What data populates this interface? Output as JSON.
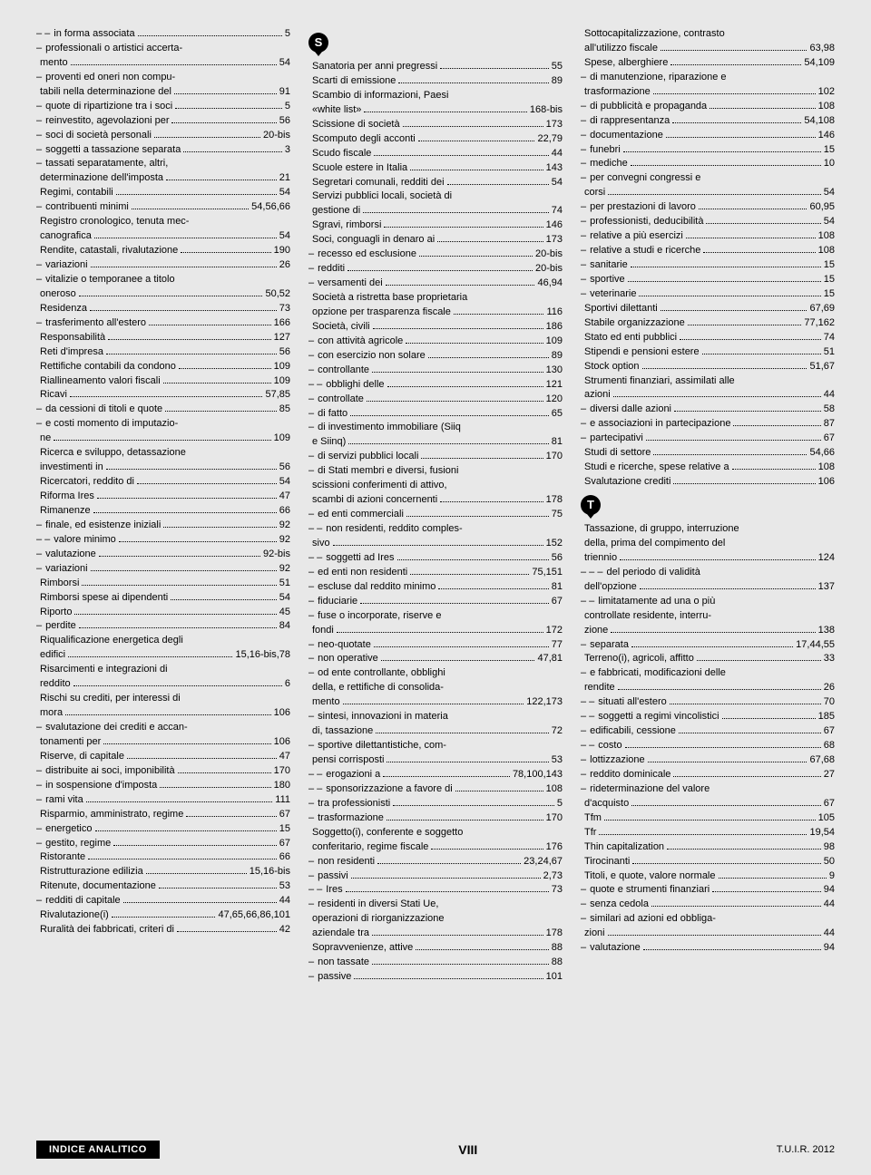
{
  "footer": {
    "left": "INDICE ANALITICO",
    "center": "VIII",
    "right": "T.U.I.R. 2012"
  },
  "sections": {
    "S": "S",
    "T": "T"
  },
  "col1": [
    {
      "d": "– – ",
      "t": "in forma associata",
      "p": "5"
    },
    {
      "d": "– ",
      "t": "professionali o artistici accerta-",
      "p": ""
    },
    {
      "d": "",
      "t": "mento",
      "p": "54"
    },
    {
      "d": "– ",
      "t": "proventi ed oneri non compu-",
      "p": ""
    },
    {
      "d": "",
      "t": "tabili nella determinazione del",
      "p": "91"
    },
    {
      "d": "– ",
      "t": "quote di ripartizione tra i soci",
      "p": "5"
    },
    {
      "d": "– ",
      "t": "reinvestito, agevolazioni per",
      "p": "56"
    },
    {
      "d": "– ",
      "t": "soci di società personali",
      "p": "20-bis"
    },
    {
      "d": "– ",
      "t": "soggetti a tassazione separata",
      "p": "3"
    },
    {
      "d": "– ",
      "t": "tassati separatamente, altri,",
      "p": ""
    },
    {
      "d": "",
      "t": "determinazione dell'imposta",
      "p": "21"
    },
    {
      "d": "",
      "t": "Regimi, contabili",
      "p": "54"
    },
    {
      "d": "– ",
      "t": "contribuenti minimi",
      "p": "54,56,66"
    },
    {
      "d": "",
      "t": "Registro cronologico, tenuta mec-",
      "p": ""
    },
    {
      "d": "",
      "t": "canografica",
      "p": "54"
    },
    {
      "d": "",
      "t": "Rendite, catastali, rivalutazione",
      "p": "190"
    },
    {
      "d": "– ",
      "t": "variazioni",
      "p": "26"
    },
    {
      "d": "– ",
      "t": "vitalizie o temporanee a titolo",
      "p": ""
    },
    {
      "d": "",
      "t": "oneroso",
      "p": "50,52"
    },
    {
      "d": "",
      "t": "Residenza",
      "p": "73"
    },
    {
      "d": "– ",
      "t": "trasferimento all'estero",
      "p": "166"
    },
    {
      "d": "",
      "t": "Responsabilità",
      "p": "127"
    },
    {
      "d": "",
      "t": "Reti d'impresa",
      "p": "56"
    },
    {
      "d": "",
      "t": "Rettifiche contabili da condono",
      "p": "109"
    },
    {
      "d": "",
      "t": "Riallineamento valori fiscali",
      "p": "109"
    },
    {
      "d": "",
      "t": "Ricavi",
      "p": "57,85"
    },
    {
      "d": "– ",
      "t": "da cessioni di titoli e quote",
      "p": "85"
    },
    {
      "d": "– ",
      "t": "e costi momento di imputazio-",
      "p": ""
    },
    {
      "d": "",
      "t": "ne",
      "p": "109"
    },
    {
      "d": "",
      "t": "Ricerca e sviluppo, detassazione",
      "p": ""
    },
    {
      "d": "",
      "t": "investimenti in",
      "p": "56"
    },
    {
      "d": "",
      "t": "Ricercatori, reddito di",
      "p": "54"
    },
    {
      "d": "",
      "t": "Riforma Ires",
      "p": "47"
    },
    {
      "d": "",
      "t": "Rimanenze",
      "p": "66"
    },
    {
      "d": "– ",
      "t": "finale, ed esistenze iniziali",
      "p": "92"
    },
    {
      "d": "– – ",
      "t": "valore minimo",
      "p": "92"
    },
    {
      "d": "– ",
      "t": "valutazione",
      "p": "92-bis"
    },
    {
      "d": "– ",
      "t": "variazioni",
      "p": "92"
    },
    {
      "d": "",
      "t": "Rimborsi",
      "p": "51"
    },
    {
      "d": "",
      "t": "Rimborsi spese ai dipendenti",
      "p": "54"
    },
    {
      "d": "",
      "t": "Riporto",
      "p": "45"
    },
    {
      "d": "– ",
      "t": "perdite",
      "p": "84"
    },
    {
      "d": "",
      "t": "Riqualificazione energetica degli",
      "p": ""
    },
    {
      "d": "",
      "t": "edifici",
      "p": "15,16-bis,78"
    },
    {
      "d": "",
      "t": "Risarcimenti e integrazioni di",
      "p": ""
    },
    {
      "d": "",
      "t": "reddito",
      "p": "6"
    },
    {
      "d": "",
      "t": "Rischi su crediti, per interessi di",
      "p": ""
    },
    {
      "d": "",
      "t": "mora",
      "p": "106"
    },
    {
      "d": "– ",
      "t": "svalutazione dei crediti e accan-",
      "p": ""
    },
    {
      "d": "",
      "t": "tonamenti per",
      "p": "106"
    },
    {
      "d": "",
      "t": "Riserve, di capitale",
      "p": "47"
    },
    {
      "d": "– ",
      "t": "distribuite ai soci, imponibilità",
      "p": "170"
    },
    {
      "d": "– ",
      "t": "in sospensione d'imposta",
      "p": "180"
    },
    {
      "d": "– ",
      "t": "rami vita",
      "p": "111"
    },
    {
      "d": "",
      "t": "Risparmio, amministrato, regime",
      "p": "67"
    },
    {
      "d": "– ",
      "t": "energetico",
      "p": "15"
    },
    {
      "d": "– ",
      "t": "gestito, regime",
      "p": "67"
    },
    {
      "d": "",
      "t": "Ristorante",
      "p": "66"
    },
    {
      "d": "",
      "t": "Ristrutturazione edilizia",
      "p": "15,16-bis"
    },
    {
      "d": "",
      "t": "Ritenute, documentazione",
      "p": "53"
    },
    {
      "d": "– ",
      "t": "redditi di capitale",
      "p": "44"
    },
    {
      "d": "",
      "t": "Rivalutazione(i)",
      "p": "47,65,66,86,101"
    },
    {
      "d": "",
      "t": "Ruralità dei fabbricati, criteri di",
      "p": "42"
    }
  ],
  "col2": [
    {
      "d": "",
      "t": "Sanatoria per anni pregressi",
      "p": "55"
    },
    {
      "d": "",
      "t": "Scarti di emissione",
      "p": "89"
    },
    {
      "d": "",
      "t": "Scambio di informazioni, Paesi",
      "p": ""
    },
    {
      "d": "",
      "t": "«white list»",
      "p": "168-bis"
    },
    {
      "d": "",
      "t": "Scissione di società",
      "p": "173"
    },
    {
      "d": "",
      "t": "Scomputo degli acconti",
      "p": "22,79"
    },
    {
      "d": "",
      "t": "Scudo fiscale",
      "p": "44"
    },
    {
      "d": "",
      "t": "Scuole estere in Italia",
      "p": "143"
    },
    {
      "d": "",
      "t": "Segretari comunali, redditi dei",
      "p": "54"
    },
    {
      "d": "",
      "t": "Servizi pubblici locali, società di",
      "p": ""
    },
    {
      "d": "",
      "t": "gestione di",
      "p": "74"
    },
    {
      "d": "",
      "t": "Sgravi, rimborsi",
      "p": "146"
    },
    {
      "d": "",
      "t": "Soci, conguagli in denaro ai",
      "p": "173"
    },
    {
      "d": "– ",
      "t": "recesso ed esclusione",
      "p": "20-bis"
    },
    {
      "d": "– ",
      "t": "redditi",
      "p": "20-bis"
    },
    {
      "d": "– ",
      "t": "versamenti dei",
      "p": "46,94"
    },
    {
      "d": "",
      "t": "Società a ristretta base proprietaria",
      "p": ""
    },
    {
      "d": "",
      "t": "opzione per trasparenza fiscale",
      "p": "116"
    },
    {
      "d": "",
      "t": "Società, civili",
      "p": "186"
    },
    {
      "d": "– ",
      "t": "con attività agricole",
      "p": "109"
    },
    {
      "d": "– ",
      "t": "con esercizio non solare",
      "p": "89"
    },
    {
      "d": "– ",
      "t": "controllante",
      "p": "130"
    },
    {
      "d": "– – ",
      "t": "obblighi delle",
      "p": "121"
    },
    {
      "d": "– ",
      "t": "controllate",
      "p": "120"
    },
    {
      "d": "– ",
      "t": "di fatto",
      "p": "65"
    },
    {
      "d": "– ",
      "t": "di investimento immobiliare (Siiq",
      "p": ""
    },
    {
      "d": "",
      "t": "e Siinq)",
      "p": "81"
    },
    {
      "d": "– ",
      "t": "di servizi pubblici locali",
      "p": "170"
    },
    {
      "d": "– ",
      "t": "di Stati membri e diversi, fusioni",
      "p": ""
    },
    {
      "d": "",
      "t": "scissioni conferimenti di attivo,",
      "p": ""
    },
    {
      "d": "",
      "t": "scambi di azioni concernenti",
      "p": "178"
    },
    {
      "d": "– ",
      "t": "ed enti commerciali",
      "p": "75"
    },
    {
      "d": "– – ",
      "t": "non residenti, reddito comples-",
      "p": ""
    },
    {
      "d": "",
      "t": "sivo",
      "p": "152"
    },
    {
      "d": "– – ",
      "t": "soggetti ad Ires",
      "p": "56"
    },
    {
      "d": "– ",
      "t": "ed enti non residenti",
      "p": "75,151"
    },
    {
      "d": "– ",
      "t": "escluse dal reddito minimo",
      "p": "81"
    },
    {
      "d": "– ",
      "t": "fiduciarie",
      "p": "67"
    },
    {
      "d": "– ",
      "t": "fuse o incorporate, riserve e",
      "p": ""
    },
    {
      "d": "",
      "t": "fondi",
      "p": "172"
    },
    {
      "d": "– ",
      "t": "neo-quotate",
      "p": "77"
    },
    {
      "d": "– ",
      "t": "non operative",
      "p": "47,81"
    },
    {
      "d": "– ",
      "t": "od ente controllante, obblighi",
      "p": ""
    },
    {
      "d": "",
      "t": "della, e rettifiche di consolida-",
      "p": ""
    },
    {
      "d": "",
      "t": "mento",
      "p": "122,173"
    },
    {
      "d": "– ",
      "t": "sintesi, innovazioni in materia",
      "p": ""
    },
    {
      "d": "",
      "t": "di, tassazione",
      "p": "72"
    },
    {
      "d": "– ",
      "t": "sportive dilettantistiche, com-",
      "p": ""
    },
    {
      "d": "",
      "t": "pensi corrisposti",
      "p": "53"
    },
    {
      "d": "– – ",
      "t": "erogazioni a",
      "p": "78,100,143"
    },
    {
      "d": "– – ",
      "t": "sponsorizzazione a favore di",
      "p": "108"
    },
    {
      "d": "– ",
      "t": "tra professionisti",
      "p": "5"
    },
    {
      "d": "– ",
      "t": "trasformazione",
      "p": "170"
    },
    {
      "d": "",
      "t": "Soggetto(i), conferente e soggetto",
      "p": ""
    },
    {
      "d": "",
      "t": "conferitario, regime fiscale",
      "p": "176"
    },
    {
      "d": "– ",
      "t": "non residenti",
      "p": "23,24,67"
    },
    {
      "d": "– ",
      "t": "passivi",
      "p": "2,73"
    },
    {
      "d": "– – ",
      "t": "Ires",
      "p": "73"
    },
    {
      "d": "– ",
      "t": "residenti in diversi Stati Ue,",
      "p": ""
    },
    {
      "d": "",
      "t": "operazioni di riorganizzazione",
      "p": ""
    },
    {
      "d": "",
      "t": "aziendale tra",
      "p": "178"
    },
    {
      "d": "",
      "t": "Sopravvenienze, attive",
      "p": "88"
    },
    {
      "d": "– ",
      "t": "non tassate",
      "p": "88"
    },
    {
      "d": "– ",
      "t": "passive",
      "p": "101"
    }
  ],
  "col3a": [
    {
      "d": "",
      "t": "Sottocapitalizzazione, contrasto",
      "p": ""
    },
    {
      "d": "",
      "t": "all'utilizzo fiscale",
      "p": "63,98"
    },
    {
      "d": "",
      "t": "Spese, alberghiere",
      "p": "54,109"
    },
    {
      "d": "– ",
      "t": "di manutenzione, riparazione e",
      "p": ""
    },
    {
      "d": "",
      "t": "trasformazione",
      "p": "102"
    },
    {
      "d": "– ",
      "t": "di pubblicità e propaganda",
      "p": "108"
    },
    {
      "d": "– ",
      "t": "di rappresentanza",
      "p": "54,108"
    },
    {
      "d": "– ",
      "t": "documentazione",
      "p": "146"
    },
    {
      "d": "– ",
      "t": "funebri",
      "p": "15"
    },
    {
      "d": "– ",
      "t": "mediche",
      "p": "10"
    },
    {
      "d": "– ",
      "t": "per convegni congressi e",
      "p": ""
    },
    {
      "d": "",
      "t": "corsi",
      "p": "54"
    },
    {
      "d": "– ",
      "t": "per prestazioni di lavoro",
      "p": "60,95"
    },
    {
      "d": "– ",
      "t": "professionisti, deducibilità",
      "p": "54"
    },
    {
      "d": "– ",
      "t": "relative a più esercizi",
      "p": "108"
    },
    {
      "d": "– ",
      "t": "relative a studi e ricerche",
      "p": "108"
    },
    {
      "d": "– ",
      "t": "sanitarie",
      "p": "15"
    },
    {
      "d": "– ",
      "t": "sportive",
      "p": "15"
    },
    {
      "d": "– ",
      "t": "veterinarie",
      "p": "15"
    },
    {
      "d": "",
      "t": "Sportivi dilettanti",
      "p": "67,69"
    },
    {
      "d": "",
      "t": "Stabile organizzazione",
      "p": "77,162"
    },
    {
      "d": "",
      "t": "Stato ed enti pubblici",
      "p": "74"
    },
    {
      "d": "",
      "t": "Stipendi e pensioni estere",
      "p": "51"
    },
    {
      "d": "",
      "t": "Stock option",
      "p": "51,67"
    },
    {
      "d": "",
      "t": "Strumenti finanziari, assimilati alle",
      "p": ""
    },
    {
      "d": "",
      "t": "azioni",
      "p": "44"
    },
    {
      "d": "– ",
      "t": "diversi dalle azioni",
      "p": "58"
    },
    {
      "d": "– ",
      "t": "e associazioni in partecipazione",
      "p": "87"
    },
    {
      "d": "– ",
      "t": "partecipativi",
      "p": "67"
    },
    {
      "d": "",
      "t": "Studi di settore",
      "p": "54,66"
    },
    {
      "d": "",
      "t": "Studi e ricerche, spese relative a",
      "p": "108"
    },
    {
      "d": "",
      "t": "Svalutazione crediti",
      "p": "106"
    }
  ],
  "col3b": [
    {
      "d": "",
      "t": "Tassazione, di gruppo, interruzione",
      "p": ""
    },
    {
      "d": "",
      "t": "della, prima del compimento del",
      "p": ""
    },
    {
      "d": "",
      "t": "triennio",
      "p": "124"
    },
    {
      "d": "– – – ",
      "t": "del periodo di validità",
      "p": ""
    },
    {
      "d": "",
      "t": "dell'opzione",
      "p": "137"
    },
    {
      "d": "– – ",
      "t": "limitatamente ad una o più",
      "p": ""
    },
    {
      "d": "",
      "t": "controllate residente, interru-",
      "p": ""
    },
    {
      "d": "",
      "t": "zione",
      "p": "138"
    },
    {
      "d": "– ",
      "t": "separata",
      "p": "17,44,55"
    },
    {
      "d": "",
      "t": "Terreno(i), agricoli, affitto",
      "p": "33"
    },
    {
      "d": "– ",
      "t": "e fabbricati, modificazioni delle",
      "p": ""
    },
    {
      "d": "",
      "t": "rendite",
      "p": "26"
    },
    {
      "d": "– – ",
      "t": "situati all'estero",
      "p": "70"
    },
    {
      "d": "– – ",
      "t": "soggetti a regimi vincolistici",
      "p": "185"
    },
    {
      "d": "– ",
      "t": "edificabili, cessione",
      "p": "67"
    },
    {
      "d": "– – ",
      "t": "costo",
      "p": "68"
    },
    {
      "d": "– ",
      "t": "lottizzazione",
      "p": "67,68"
    },
    {
      "d": "– ",
      "t": "reddito dominicale",
      "p": "27"
    },
    {
      "d": "– ",
      "t": "rideterminazione del valore",
      "p": ""
    },
    {
      "d": "",
      "t": "d'acquisto",
      "p": "67"
    },
    {
      "d": "",
      "t": "Tfm",
      "p": "105"
    },
    {
      "d": "",
      "t": "Tfr",
      "p": "19,54"
    },
    {
      "d": "",
      "t": "Thin capitalization",
      "p": "98"
    },
    {
      "d": "",
      "t": "Tirocinanti",
      "p": "50"
    },
    {
      "d": "",
      "t": "Titoli, e quote, valore normale",
      "p": "9"
    },
    {
      "d": "– ",
      "t": "quote e strumenti finanziari",
      "p": "94"
    },
    {
      "d": "– ",
      "t": "senza cedola",
      "p": "44"
    },
    {
      "d": "– ",
      "t": "similari ad azioni ed obbliga-",
      "p": ""
    },
    {
      "d": "",
      "t": "zioni",
      "p": "44"
    },
    {
      "d": "– ",
      "t": "valutazione",
      "p": "94"
    }
  ]
}
